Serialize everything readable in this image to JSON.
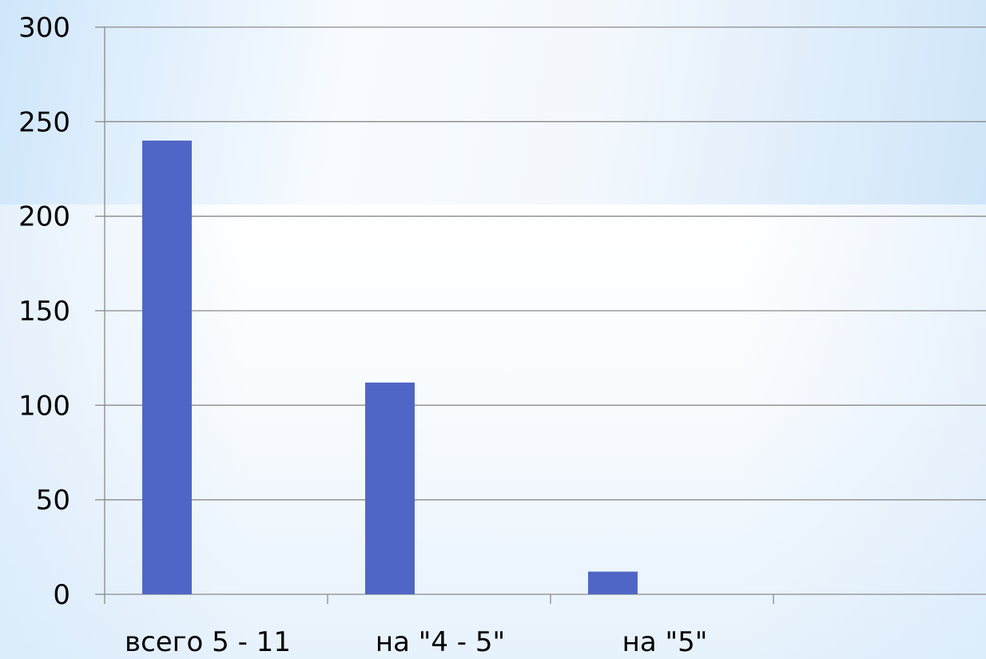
{
  "chart_data": {
    "type": "bar",
    "categories": [
      "всего 5 - 11",
      "на \"4 - 5\"",
      "на \"5\"",
      ""
    ],
    "values": [
      240,
      112,
      12,
      null
    ],
    "title": "",
    "xlabel": "",
    "ylabel": "",
    "ylim": [
      0,
      300
    ],
    "yticks": [
      "0",
      "50",
      "100",
      "150",
      "200",
      "250",
      "300"
    ],
    "grid": true,
    "legend": "none",
    "bar_color": "#5066c6",
    "grid_color": "#8a8a8a"
  }
}
